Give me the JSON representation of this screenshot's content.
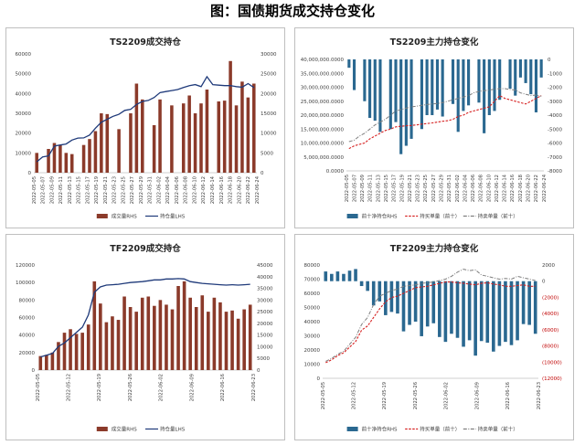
{
  "page_title": "图：国债期货成交持仓变化",
  "colors": {
    "bar": "#8b3a2a",
    "oi_line": "#1f3a7a",
    "net_bar": "#2a6890",
    "long": "#d62020",
    "short": "#7f7f7f",
    "axis_text": "#404040",
    "frame": "#bfbfbf"
  },
  "chart_data": [
    {
      "id": "ts-volume",
      "type": "bar+line",
      "title": "TS2209成交持仓",
      "categories": [
        "2022-05-05",
        "2022-05-06",
        "2022-05-07",
        "2022-05-09",
        "2022-05-10",
        "2022-05-11",
        "2022-05-12",
        "2022-05-13",
        "2022-05-16",
        "2022-05-17",
        "2022-05-18",
        "2022-05-19",
        "2022-05-20",
        "2022-05-21",
        "2022-05-23",
        "2022-05-24",
        "2022-05-25",
        "2022-05-26",
        "2022-05-27",
        "2022-05-30",
        "2022-05-31",
        "2022-06-01",
        "2022-06-02",
        "2022-06-06",
        "2022-06-07",
        "2022-06-08",
        "2022-06-09",
        "2022-06-10",
        "2022-06-13",
        "2022-06-14",
        "2022-06-15",
        "2022-06-16",
        "2022-06-17",
        "2022-06-20",
        "2022-06-21",
        "2022-06-22",
        "2022-06-23",
        "2022-06-24"
      ],
      "x_tick_labels": [
        "2022-05-05",
        "2022-05-07",
        "2022-05-09",
        "2022-05-11",
        "2022-05-13",
        "2022-05-15",
        "2022-05-17",
        "2022-05-19",
        "2022-05-21",
        "2022-05-23",
        "2022-05-25",
        "2022-05-27",
        "2022-05-29",
        "2022-05-31",
        "2022-06-02",
        "2022-06-04",
        "2022-06-06",
        "2022-06-08",
        "2022-06-10",
        "2022-06-12",
        "2022-06-14",
        "2022-06-16",
        "2022-06-18",
        "2022-06-20",
        "2022-06-22",
        "2022-06-24"
      ],
      "series": [
        {
          "name": "成交量RHS",
          "kind": "bar",
          "axis": "right",
          "values": [
            5000,
            0,
            6000,
            7500,
            7000,
            5000,
            4700,
            0,
            7000,
            8500,
            10500,
            15000,
            14800,
            0,
            11000,
            0,
            15000,
            22500,
            18500,
            0,
            12000,
            18500,
            0,
            17000,
            0,
            17500,
            19500,
            15000,
            17500,
            21000,
            0,
            18000,
            18200,
            28200,
            17000,
            23000,
            19000,
            22500
          ]
        },
        {
          "name": "持仓量LHS",
          "kind": "line",
          "axis": "left",
          "values": [
            5500,
            8000,
            8500,
            13500,
            14000,
            14500,
            16500,
            17500,
            17600,
            19000,
            22500,
            25500,
            27000,
            28500,
            29500,
            31500,
            32000,
            34500,
            36000,
            36500,
            38000,
            40500,
            41000,
            41500,
            42000,
            43000,
            44000,
            44500,
            43500,
            48500,
            44500,
            44200,
            44000,
            44000,
            43500,
            43200,
            45000,
            43000
          ]
        }
      ],
      "y_left": {
        "min": 0,
        "max": 60000,
        "ticks": [
          "0",
          "10000",
          "20000",
          "30000",
          "40000",
          "50000",
          "60000"
        ]
      },
      "y_right": {
        "min": 0,
        "max": 30000,
        "ticks": [
          "0",
          "5000",
          "10000",
          "15000",
          "20000",
          "25000",
          "30000"
        ]
      },
      "legend": [
        "成交量RHS",
        "持仓量LHS"
      ],
      "legend_placement": "bottom"
    },
    {
      "id": "ts-holders",
      "type": "bar+line",
      "title": "TS2209主力持仓变化",
      "categories": [
        "2022-05-05",
        "2022-05-06",
        "2022-05-07",
        "2022-05-09",
        "2022-05-10",
        "2022-05-11",
        "2022-05-12",
        "2022-05-13",
        "2022-05-16",
        "2022-05-17",
        "2022-05-18",
        "2022-05-19",
        "2022-05-20",
        "2022-05-21",
        "2022-05-23",
        "2022-05-24",
        "2022-05-25",
        "2022-05-26",
        "2022-05-27",
        "2022-05-30",
        "2022-05-31",
        "2022-06-01",
        "2022-06-02",
        "2022-06-06",
        "2022-06-07",
        "2022-06-08",
        "2022-06-09",
        "2022-06-10",
        "2022-06-13",
        "2022-06-14",
        "2022-06-15",
        "2022-06-16",
        "2022-06-17",
        "2022-06-20",
        "2022-06-21",
        "2022-06-22",
        "2022-06-23",
        "2022-06-24"
      ],
      "x_tick_labels": [
        "2022-05-05",
        "2022-05-07",
        "2022-05-09",
        "2022-05-11",
        "2022-05-13",
        "2022-05-15",
        "2022-05-17",
        "2022-05-19",
        "2022-05-21",
        "2022-05-23",
        "2022-05-25",
        "2022-05-27",
        "2022-05-29",
        "2022-05-31",
        "2022-06-02",
        "2022-06-04",
        "2022-06-06",
        "2022-06-08",
        "2022-06-10",
        "2022-06-12",
        "2022-06-14",
        "2022-06-16",
        "2022-06-18",
        "2022-06-20",
        "2022-06-22",
        "2022-06-24"
      ],
      "series": [
        {
          "name": "前十净持仓RHS",
          "kind": "bar",
          "axis": "right",
          "values": [
            -600,
            -2200,
            0,
            -3000,
            -4200,
            -4400,
            -5200,
            0,
            -5000,
            -4500,
            -6800,
            -6200,
            -5700,
            0,
            -5000,
            -4000,
            -4000,
            -3600,
            -4100,
            0,
            -3200,
            -5200,
            -3700,
            -3300,
            0,
            -3100,
            -5300,
            -4000,
            -3700,
            -2900,
            0,
            -2100,
            -2600,
            -1300,
            -1700,
            -2500,
            -3800,
            -1300
          ]
        },
        {
          "name": "持买单量（前十）",
          "kind": "line",
          "axis": "left",
          "style": "dashed",
          "values": [
            8000000,
            9000000,
            9500000,
            10000000,
            11500000,
            12500000,
            13500000,
            14500000,
            15000000,
            15800000,
            16000000,
            16200000,
            16300000,
            16500000,
            16800000,
            17000000,
            17200000,
            17500000,
            17800000,
            18000000,
            18500000,
            19500000,
            20000000,
            21000000,
            21500000,
            22000000,
            22500000,
            23000000,
            25000000,
            27000000,
            26000000,
            25500000,
            25000000,
            24500000,
            24000000,
            25000000,
            26000000,
            27000000
          ]
        },
        {
          "name": "持卖单量（前十）",
          "kind": "line",
          "axis": "left",
          "style": "dashdot",
          "values": [
            10500000,
            11000000,
            12500000,
            13500000,
            15000000,
            16500000,
            17500000,
            18500000,
            20000000,
            21500000,
            22000000,
            22500000,
            23000000,
            23200000,
            23500000,
            23800000,
            24000000,
            24200000,
            24500000,
            25000000,
            25500000,
            26000000,
            26500000,
            27000000,
            28000000,
            28500000,
            28800000,
            29000000,
            29300000,
            29500000,
            29500000,
            29200000,
            29000000,
            28000000,
            27500000,
            27000000,
            27200000,
            26800000
          ]
        }
      ],
      "y_left": {
        "min": 0,
        "max": 40000000,
        "ticks": [
          "0.0000",
          "5,000,000.0000",
          "10,000,000.0000",
          "15,000,000.0000",
          "20,000,000.0000",
          "25,000,000.0000",
          "30,000,000.0000",
          "35,000,000.0000",
          "40,000,000.0000"
        ]
      },
      "y_right": {
        "min": -8000,
        "max": 0,
        "ticks": [
          "-8000",
          "-7000",
          "-6000",
          "-5000",
          "-4000",
          "-3000",
          "-2000",
          "-1000",
          "0"
        ]
      },
      "legend": [
        "前十净持仓RHS",
        "持买单量（前十）",
        "持卖单量（前十）"
      ],
      "legend_placement": "bottom"
    },
    {
      "id": "tf-volume",
      "type": "bar+line",
      "title": "TF2209成交持仓",
      "categories": [
        "2022-05-05",
        "2022-05-06",
        "2022-05-09",
        "2022-05-10",
        "2022-05-11",
        "2022-05-12",
        "2022-05-13",
        "2022-05-16",
        "2022-05-17",
        "2022-05-18",
        "2022-05-19",
        "2022-05-20",
        "2022-05-23",
        "2022-05-24",
        "2022-05-25",
        "2022-05-26",
        "2022-05-27",
        "2022-05-30",
        "2022-05-31",
        "2022-06-01",
        "2022-06-02",
        "2022-06-06",
        "2022-06-07",
        "2022-06-08",
        "2022-06-09",
        "2022-06-10",
        "2022-06-13",
        "2022-06-14",
        "2022-06-15",
        "2022-06-16",
        "2022-06-17",
        "2022-06-20",
        "2022-06-21",
        "2022-06-22",
        "2022-06-23",
        "2022-06-24"
      ],
      "x_tick_labels": [
        "2022-05-05",
        "2022-05-12",
        "2022-05-19",
        "2022-05-26",
        "2022-06-02",
        "2022-06-09",
        "2022-06-16",
        "2022-06-23"
      ],
      "series": [
        {
          "name": "成交量RHS",
          "kind": "bar",
          "axis": "right",
          "values": [
            6000,
            6500,
            7500,
            12000,
            16000,
            17500,
            15500,
            16000,
            19500,
            38000,
            28500,
            20500,
            23000,
            21500,
            31500,
            27000,
            25000,
            31000,
            31500,
            27500,
            30000,
            28000,
            26000,
            36000,
            38000,
            31000,
            27000,
            32000,
            25000,
            31000,
            29000,
            25000,
            25500,
            22000,
            26000,
            28000
          ]
        },
        {
          "name": "持仓量LHS",
          "kind": "line",
          "axis": "left",
          "values": [
            15000,
            17000,
            19000,
            27000,
            31000,
            37000,
            43000,
            49000,
            63000,
            89000,
            95000,
            97000,
            97500,
            98000,
            99000,
            100000,
            100500,
            101000,
            102000,
            103000,
            103000,
            104000,
            104000,
            104500,
            104000,
            101000,
            100000,
            99000,
            98500,
            98000,
            97500,
            97000,
            97500,
            97000,
            97500,
            98000
          ]
        }
      ],
      "y_left": {
        "min": 0,
        "max": 120000,
        "ticks": [
          "0",
          "20000",
          "40000",
          "60000",
          "80000",
          "100000",
          "120000"
        ]
      },
      "y_right": {
        "min": 0,
        "max": 45000,
        "ticks": [
          "0",
          "5000",
          "10000",
          "15000",
          "20000",
          "25000",
          "30000",
          "35000",
          "40000",
          "45000"
        ]
      },
      "legend": [
        "成交量RHS",
        "持仓量LHS"
      ],
      "legend_placement": "bottom"
    },
    {
      "id": "tf-holders",
      "type": "bar+line",
      "title": "TF2209主力持仓变化",
      "categories": [
        "2022-05-05",
        "2022-05-06",
        "2022-05-09",
        "2022-05-10",
        "2022-05-11",
        "2022-05-12",
        "2022-05-13",
        "2022-05-16",
        "2022-05-17",
        "2022-05-18",
        "2022-05-19",
        "2022-05-20",
        "2022-05-23",
        "2022-05-24",
        "2022-05-25",
        "2022-05-26",
        "2022-05-27",
        "2022-05-30",
        "2022-05-31",
        "2022-06-01",
        "2022-06-02",
        "2022-06-06",
        "2022-06-07",
        "2022-06-08",
        "2022-06-09",
        "2022-06-10",
        "2022-06-13",
        "2022-06-14",
        "2022-06-15",
        "2022-06-16",
        "2022-06-17",
        "2022-06-20",
        "2022-06-21",
        "2022-06-22",
        "2022-06-23",
        "2022-06-24"
      ],
      "x_tick_labels": [
        "2022-05-05",
        "2022-05-12",
        "2022-05-19",
        "2022-05-26",
        "2022-06-02",
        "2022-06-09",
        "2022-06-16",
        "2022-06-23"
      ],
      "series": [
        {
          "name": "前十净持仓RHS",
          "kind": "bar",
          "axis": "right",
          "values": [
            1200,
            900,
            1200,
            900,
            1300,
            1500,
            -600,
            -1200,
            -3000,
            -2500,
            -4200,
            -3800,
            -4000,
            -6200,
            -5400,
            -5000,
            -6800,
            -5600,
            -5200,
            -6900,
            -7500,
            -6500,
            -7000,
            -8100,
            -7300,
            -9200,
            -7400,
            -7600,
            -8700,
            -8000,
            -7500,
            -7900,
            -7300,
            -5300,
            -5400,
            -6500
          ]
        },
        {
          "name": "持买单量（前十）",
          "kind": "line",
          "axis": "left",
          "style": "dashed",
          "values": [
            11000,
            13000,
            16000,
            18000,
            22000,
            26000,
            34000,
            37000,
            43000,
            49000,
            54000,
            57000,
            58000,
            60000,
            62000,
            64000,
            64500,
            65000,
            66000,
            67000,
            68000,
            68000,
            67500,
            67000,
            66500,
            66000,
            67000,
            67500,
            66500,
            66000,
            65000,
            65000,
            65500,
            66000,
            65000,
            65000
          ]
        },
        {
          "name": "持卖单量（前十）",
          "kind": "line",
          "axis": "left",
          "style": "dashdot",
          "values": [
            12000,
            14000,
            17000,
            19000,
            24000,
            29000,
            38000,
            43000,
            52000,
            58000,
            60000,
            62000,
            63000,
            65000,
            65500,
            66000,
            67000,
            67500,
            68000,
            69000,
            70000,
            72000,
            75000,
            77000,
            76000,
            76500,
            73000,
            72000,
            71000,
            70000,
            70500,
            70000,
            72000,
            71000,
            70000,
            69000
          ]
        }
      ],
      "y_left": {
        "min": 0,
        "max": 80000,
        "ticks": [
          "0",
          "10000",
          "20000",
          "30000",
          "40000",
          "50000",
          "60000",
          "70000",
          "80000"
        ]
      },
      "y_right": {
        "min": -12000,
        "max": 2000,
        "ticks": [
          "(12000)",
          "(10000)",
          "(8000)",
          "(6000)",
          "(4000)",
          "(2000)",
          "0",
          "2000"
        ]
      },
      "legend": [
        "前十净持仓RHS",
        "持买单量（前十）",
        "持卖单量（前十）"
      ],
      "legend_placement": "bottom"
    }
  ]
}
